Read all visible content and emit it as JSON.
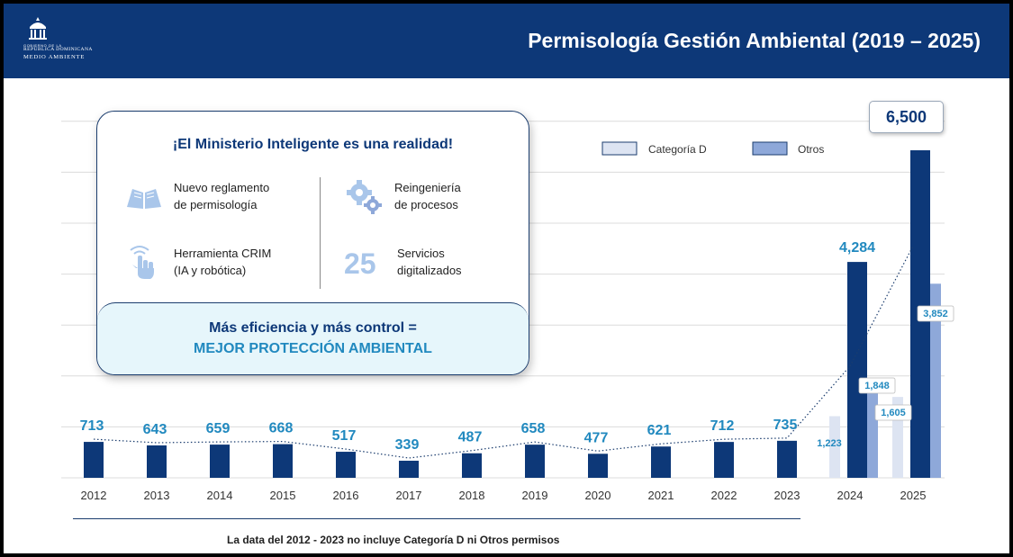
{
  "header": {
    "title": "Permisología Gestión Ambiental (2019 – 2025)",
    "logo": {
      "line1": "GOBIERNO DE LA",
      "line2": "REPÚBLICA DOMINICANA",
      "line3": "MEDIO AMBIENTE"
    }
  },
  "info_card": {
    "title": "¡El Ministerio Inteligente es una realidad!",
    "features": [
      {
        "icon": "book-icon",
        "line1": "Nuevo reglamento",
        "line2": "de permisología"
      },
      {
        "icon": "gears-icon",
        "line1": "Reingeniería",
        "line2": "de procesos"
      },
      {
        "icon": "touch-hand-icon",
        "line1": "Herramienta CRIM",
        "line2": "(IA y robótica)"
      },
      {
        "icon": "number-25",
        "line1": "Servicios",
        "line2": "digitalizados"
      }
    ],
    "number": "25",
    "footer_line1": "Más eficiencia y más control =",
    "footer_line2": "MEJOR PROTECCIÓN AMBIENTAL"
  },
  "footnote": "La data del 2012 - 2023 no incluye Categoría D ni Otros permisos",
  "chart_data": {
    "type": "bar",
    "categories": [
      "2012",
      "2013",
      "2014",
      "2015",
      "2016",
      "2017",
      "2018",
      "2019",
      "2020",
      "2021",
      "2022",
      "2023",
      "2024",
      "2025"
    ],
    "series": [
      {
        "name": "",
        "values": [
          713,
          643,
          659,
          668,
          517,
          339,
          487,
          658,
          477,
          621,
          712,
          735,
          4284,
          6500
        ],
        "labels": [
          "713",
          "643",
          "659",
          "668",
          "517",
          "339",
          "487",
          "658",
          "477",
          "621",
          "712",
          "735",
          "4,284",
          "6,500"
        ],
        "color": "#0d3878"
      },
      {
        "name": "Categoría D",
        "values": [
          null,
          null,
          null,
          null,
          null,
          null,
          null,
          null,
          null,
          null,
          null,
          null,
          1223,
          1605
        ],
        "labels": [
          "",
          "",
          "",
          "",
          "",
          "",
          "",
          "",
          "",
          "",
          "",
          "",
          "1,223",
          "1,605"
        ],
        "color": "#dde4f2"
      },
      {
        "name": "Otros",
        "values": [
          null,
          null,
          null,
          null,
          null,
          null,
          null,
          null,
          null,
          null,
          null,
          null,
          1848,
          3852
        ],
        "labels": [
          "",
          "",
          "",
          "",
          "",
          "",
          "",
          "",
          "",
          "",
          "",
          "",
          "1,848",
          "3,852"
        ],
        "color": "#8ea8d9"
      }
    ],
    "ylim": [
      0,
      6500
    ],
    "grid": true,
    "legend": "top-right",
    "trendline": "dotted"
  }
}
